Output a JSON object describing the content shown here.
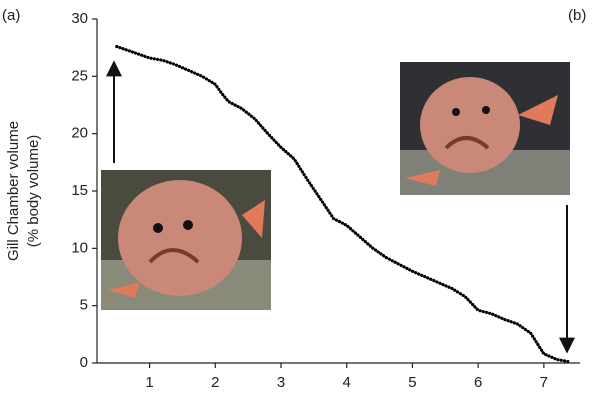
{
  "chart_data": {
    "type": "line",
    "annotations": [
      "(a)",
      "(b)"
    ],
    "y_label": [
      "Gill Chamber volume",
      "(% body volume)"
    ],
    "x": [
      0.5,
      0.7,
      0.9,
      1.0,
      1.2,
      1.4,
      1.6,
      1.8,
      2.0,
      2.1,
      2.2,
      2.4,
      2.6,
      2.8,
      3.0,
      3.2,
      3.4,
      3.6,
      3.8,
      4.0,
      4.2,
      4.4,
      4.6,
      4.8,
      5.0,
      5.2,
      5.4,
      5.6,
      5.8,
      6.0,
      6.2,
      6.4,
      6.6,
      6.8,
      7.0,
      7.2,
      7.4
    ],
    "values": [
      27.6,
      27.2,
      26.8,
      26.6,
      26.4,
      26.0,
      25.5,
      25.0,
      24.3,
      23.5,
      22.8,
      22.2,
      21.3,
      20.0,
      18.8,
      17.8,
      16.0,
      14.3,
      12.6,
      12.0,
      11.0,
      10.0,
      9.2,
      8.6,
      8.0,
      7.5,
      7.0,
      6.5,
      5.8,
      4.6,
      4.3,
      3.8,
      3.4,
      2.6,
      0.8,
      0.3,
      0.1
    ],
    "color": "#000000",
    "xlim": [
      0.2,
      7.55
    ],
    "xticks": [
      1,
      2,
      3,
      4,
      5,
      6,
      7
    ],
    "ylim": [
      0,
      30
    ],
    "yticks": [
      0,
      5,
      10,
      15,
      20,
      25,
      30
    ]
  }
}
